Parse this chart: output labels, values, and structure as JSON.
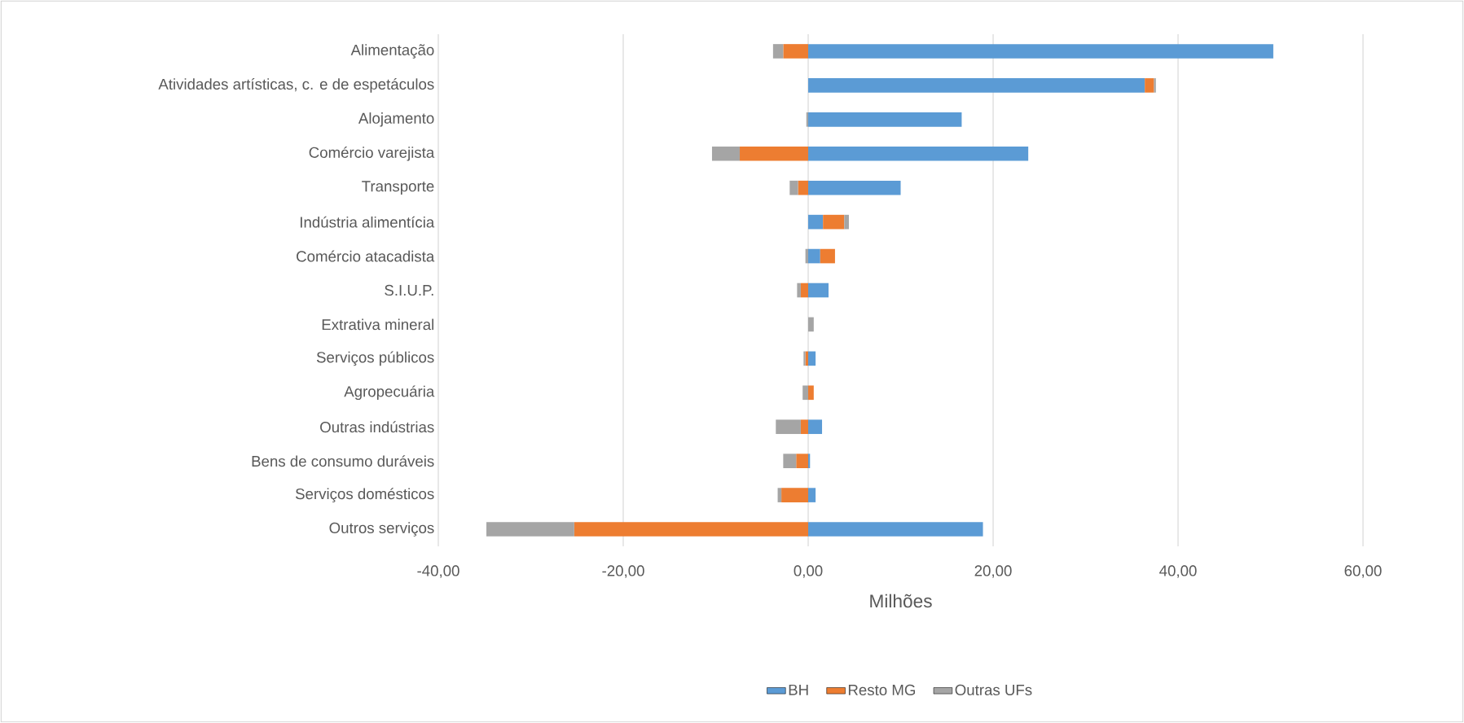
{
  "chart_data": {
    "type": "bar",
    "orientation": "horizontal",
    "stacked": true,
    "categories": [
      "Alimentação",
      "Atividades artísticas, c. e de espetáculos",
      "Alojamento",
      "Comércio varejista",
      "Transporte",
      "Indústria alimentícia",
      "Comércio atacadista",
      "S.I.U.P.",
      "Extrativa mineral",
      "Serviços públicos",
      "Agropecuária",
      "Outras indústrias",
      "Bens de consumo duráveis",
      "Serviços domésticos",
      "Outros serviços"
    ],
    "series": [
      {
        "name": "BH",
        "color": "#5b9bd5",
        "values": [
          50.3,
          36.4,
          16.6,
          23.8,
          10.0,
          1.6,
          1.3,
          2.2,
          0,
          0.8,
          0,
          1.5,
          0.2,
          0.8,
          18.9
        ]
      },
      {
        "name": "Resto MG",
        "color": "#ed7d31",
        "values": [
          -2.7,
          1.0,
          0,
          -7.4,
          -1.1,
          2.3,
          1.6,
          -0.8,
          0,
          -0.3,
          0.6,
          -0.8,
          -1.3,
          -2.9,
          -25.3
        ]
      },
      {
        "name": "Outras UFs",
        "color": "#a5a5a5",
        "values": [
          -1.1,
          0.2,
          -0.2,
          -3.0,
          -0.9,
          0.5,
          -0.3,
          -0.4,
          0.6,
          -0.2,
          -0.6,
          -2.7,
          -1.4,
          -0.4,
          -9.5
        ]
      }
    ],
    "xlabel": "Milhões",
    "xlim": [
      -40,
      60
    ],
    "xticks": [
      {
        "value": -40,
        "label": "-40,00"
      },
      {
        "value": -20,
        "label": "-20,00"
      },
      {
        "value": 0,
        "label": "0,00"
      },
      {
        "value": 20,
        "label": "20,00"
      },
      {
        "value": 40,
        "label": "40,00"
      },
      {
        "value": 60,
        "label": "60,00"
      }
    ],
    "grid": "x",
    "legend": "bottom"
  }
}
